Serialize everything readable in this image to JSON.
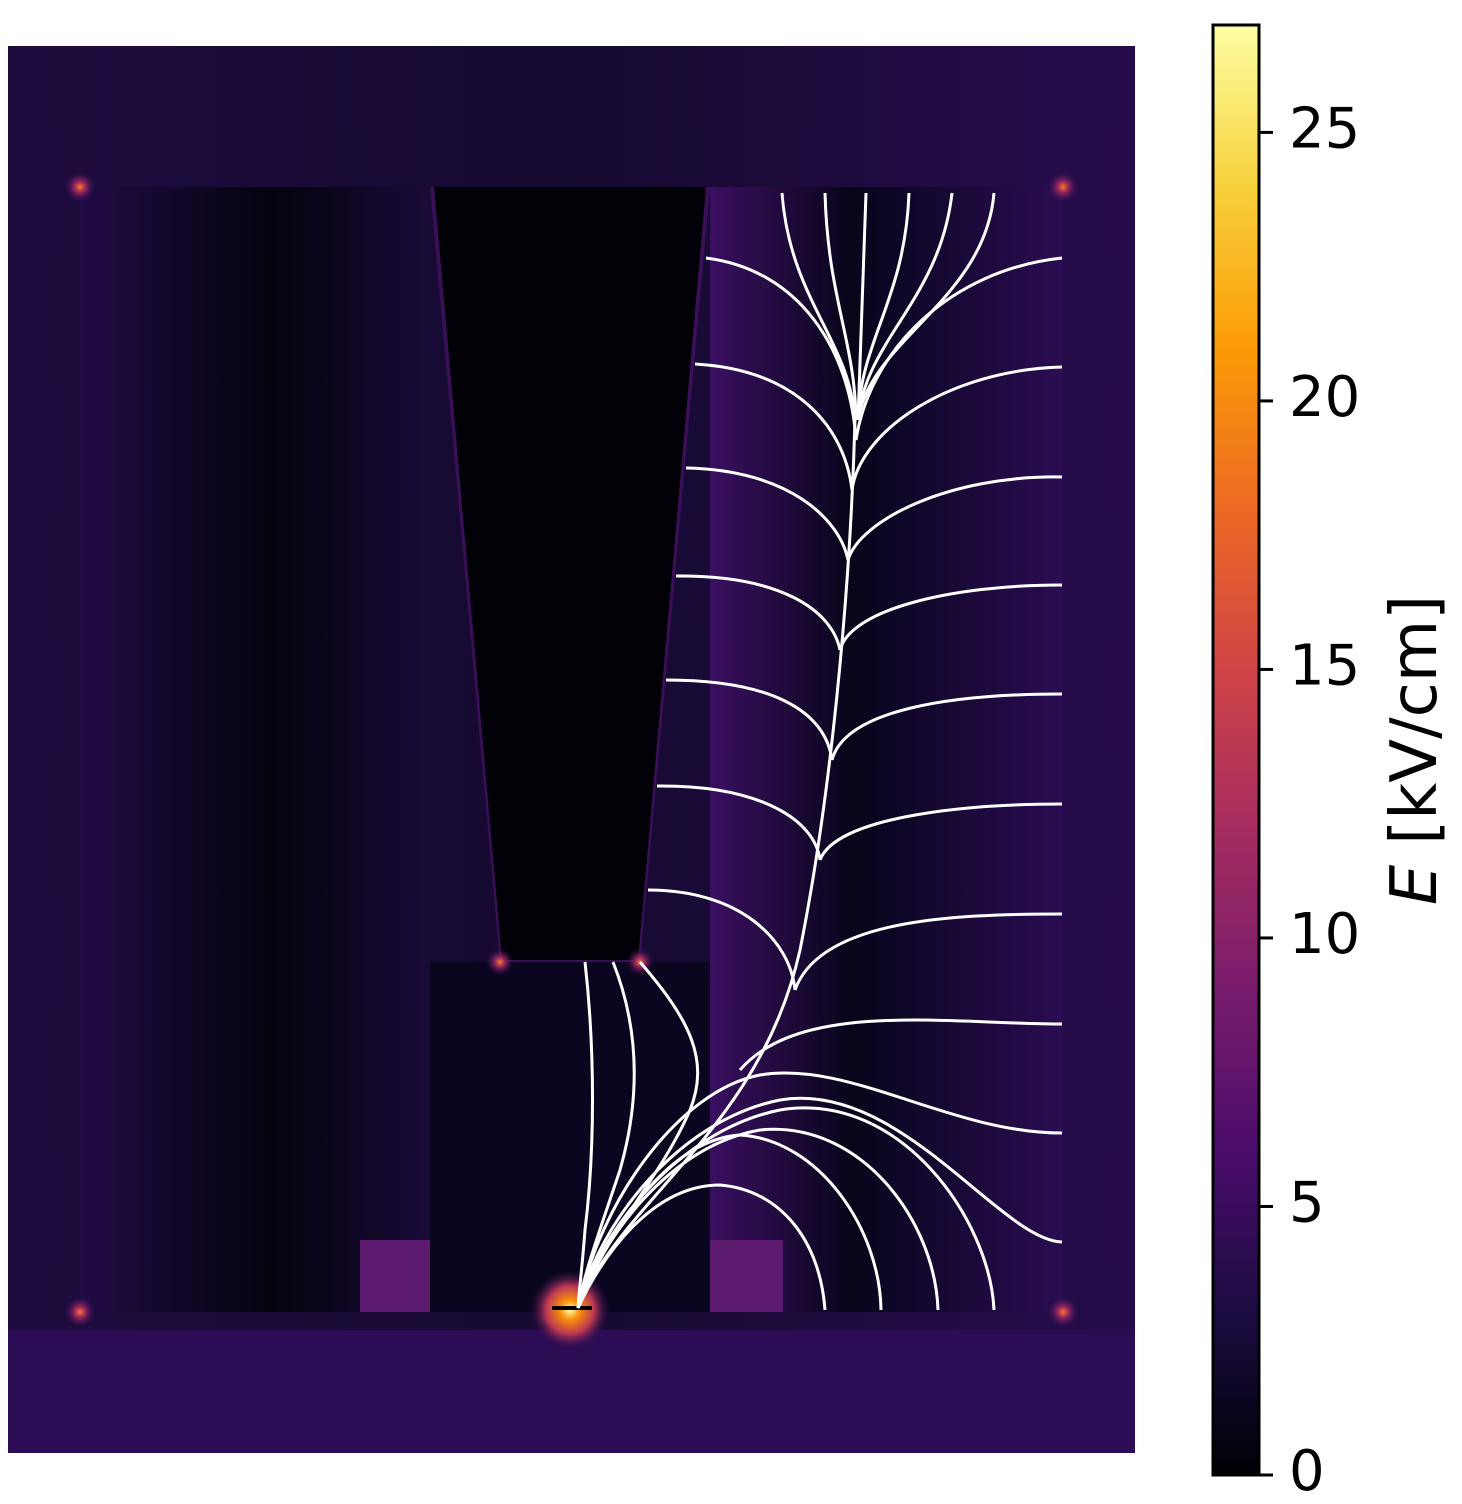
{
  "chart_data": {
    "type": "heatmap",
    "colormap": "inferno",
    "colorbar_label": {
      "symbol": "E",
      "unit": "[kV/cm]"
    },
    "ylim": [
      0,
      27
    ],
    "yticks": [
      0,
      5,
      10,
      15,
      20,
      25
    ]
  }
}
